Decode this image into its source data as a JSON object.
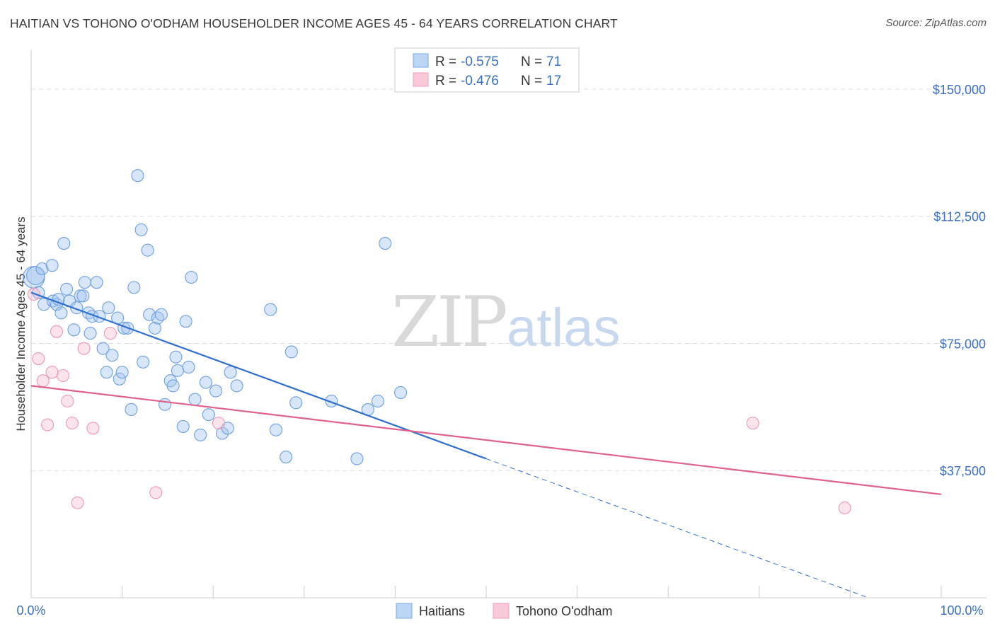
{
  "title": "HAITIAN VS TOHONO O'ODHAM HOUSEHOLDER INCOME AGES 45 - 64 YEARS CORRELATION CHART",
  "source": "Source: ZipAtlas.com",
  "watermark": {
    "zip": "ZIP",
    "atlas": "atlas"
  },
  "legend_top": [
    {
      "r_label": "R = ",
      "r_value": "-0.575",
      "n_label": "N = ",
      "n_value": "71"
    },
    {
      "r_label": "R = ",
      "r_value": "-0.476",
      "n_label": "N = ",
      "n_value": "17"
    }
  ],
  "legend_bottom": [
    "Haitians",
    "Tohono O'odham"
  ],
  "chart_data": {
    "type": "scatter",
    "title": "HAITIAN VS TOHONO O'ODHAM HOUSEHOLDER INCOME AGES 45 - 64 YEARS CORRELATION CHART",
    "xlabel": "",
    "ylabel": "Householder Income Ages 45 - 64 years",
    "xlim": [
      0,
      100
    ],
    "ylim": [
      0,
      160000
    ],
    "x_tick_labels": [
      "0.0%",
      "100.0%"
    ],
    "y_ticks": [
      37500,
      75000,
      112500,
      150000
    ],
    "y_tick_labels": [
      "$37,500",
      "$75,000",
      "$112,500",
      "$150,000"
    ],
    "grid": true,
    "legend_position": "top-center",
    "colors": {
      "Haitians": "#7aaae8",
      "Tohono O'odham": "#f29bb8",
      "haitian_line": "#2f6fcf",
      "tohono_line": "#e0608e"
    },
    "series": [
      {
        "name": "Haitians",
        "r": -0.575,
        "n": 71,
        "points": [
          [
            0.3,
            94500,
            1.8
          ],
          [
            0.5,
            95000,
            1.5
          ],
          [
            0.8,
            90000,
            1
          ],
          [
            1.2,
            97000,
            1
          ],
          [
            1.4,
            86500,
            1
          ],
          [
            2.3,
            98000,
            1
          ],
          [
            2.4,
            87500,
            1
          ],
          [
            2.8,
            86500,
            1
          ],
          [
            3.0,
            88000,
            1
          ],
          [
            3.3,
            84000,
            1
          ],
          [
            3.6,
            104500,
            1
          ],
          [
            3.9,
            91000,
            1
          ],
          [
            4.2,
            87500,
            1
          ],
          [
            4.7,
            79000,
            1
          ],
          [
            5.0,
            85500,
            1
          ],
          [
            5.4,
            89000,
            1
          ],
          [
            5.7,
            89000,
            1
          ],
          [
            5.9,
            93000,
            1
          ],
          [
            6.3,
            84000,
            1
          ],
          [
            6.5,
            78000,
            1
          ],
          [
            6.7,
            83000,
            1
          ],
          [
            7.2,
            93000,
            1
          ],
          [
            7.5,
            83000,
            1
          ],
          [
            7.9,
            73500,
            1
          ],
          [
            8.3,
            66500,
            1
          ],
          [
            8.5,
            85500,
            1
          ],
          [
            8.9,
            71500,
            1
          ],
          [
            9.5,
            82500,
            1
          ],
          [
            9.7,
            64500,
            1
          ],
          [
            10.0,
            66500,
            1
          ],
          [
            10.2,
            79500,
            1
          ],
          [
            10.6,
            79500,
            1
          ],
          [
            11.0,
            55500,
            1
          ],
          [
            11.3,
            91500,
            1
          ],
          [
            11.7,
            124500,
            1
          ],
          [
            12.1,
            108500,
            1
          ],
          [
            12.3,
            69500,
            1
          ],
          [
            12.8,
            102500,
            1
          ],
          [
            13.0,
            83500,
            1
          ],
          [
            13.6,
            79500,
            1
          ],
          [
            13.9,
            82500,
            1
          ],
          [
            14.3,
            83500,
            1
          ],
          [
            14.7,
            57000,
            1
          ],
          [
            15.3,
            64000,
            1
          ],
          [
            15.6,
            62500,
            1
          ],
          [
            15.9,
            71000,
            1
          ],
          [
            16.1,
            67000,
            1
          ],
          [
            16.7,
            50500,
            1
          ],
          [
            17.0,
            81500,
            1
          ],
          [
            17.3,
            68000,
            1
          ],
          [
            17.6,
            94500,
            1
          ],
          [
            18.0,
            58500,
            1
          ],
          [
            18.6,
            48000,
            1
          ],
          [
            19.2,
            63500,
            1
          ],
          [
            19.5,
            54000,
            1
          ],
          [
            20.3,
            61000,
            1
          ],
          [
            21.0,
            48500,
            1
          ],
          [
            21.6,
            50000,
            1
          ],
          [
            21.9,
            66500,
            1
          ],
          [
            22.6,
            62500,
            1
          ],
          [
            26.3,
            85000,
            1
          ],
          [
            26.9,
            49500,
            1
          ],
          [
            28.0,
            41500,
            1
          ],
          [
            28.6,
            72500,
            1
          ],
          [
            29.1,
            57500,
            1
          ],
          [
            33.0,
            58000,
            1
          ],
          [
            35.8,
            41000,
            1
          ],
          [
            37.0,
            55500,
            1
          ],
          [
            38.1,
            58000,
            1
          ],
          [
            38.9,
            104500,
            1
          ],
          [
            40.6,
            60500,
            1
          ]
        ],
        "trendline": {
          "x": [
            0,
            50
          ],
          "y": [
            90000,
            41000
          ]
        },
        "trendline_extension": {
          "x": [
            50,
            92
          ],
          "y": [
            41000,
            0
          ]
        }
      },
      {
        "name": "Tohono O'odham",
        "r": -0.476,
        "n": 17,
        "points": [
          [
            0.3,
            89500,
            1
          ],
          [
            0.8,
            70500,
            1
          ],
          [
            1.3,
            64000,
            1
          ],
          [
            1.8,
            51000,
            1
          ],
          [
            2.3,
            66500,
            1
          ],
          [
            2.8,
            78500,
            1
          ],
          [
            3.5,
            65500,
            1
          ],
          [
            4.0,
            58000,
            1
          ],
          [
            4.5,
            51500,
            1
          ],
          [
            5.1,
            28000,
            1
          ],
          [
            5.8,
            73500,
            1
          ],
          [
            6.8,
            50000,
            1
          ],
          [
            8.7,
            78000,
            1
          ],
          [
            13.7,
            31000,
            1
          ],
          [
            20.6,
            51500,
            1
          ],
          [
            79.3,
            51500,
            1
          ],
          [
            89.4,
            26500,
            1
          ]
        ],
        "trendline": {
          "x": [
            0,
            100
          ],
          "y": [
            62500,
            30500
          ]
        }
      }
    ]
  }
}
